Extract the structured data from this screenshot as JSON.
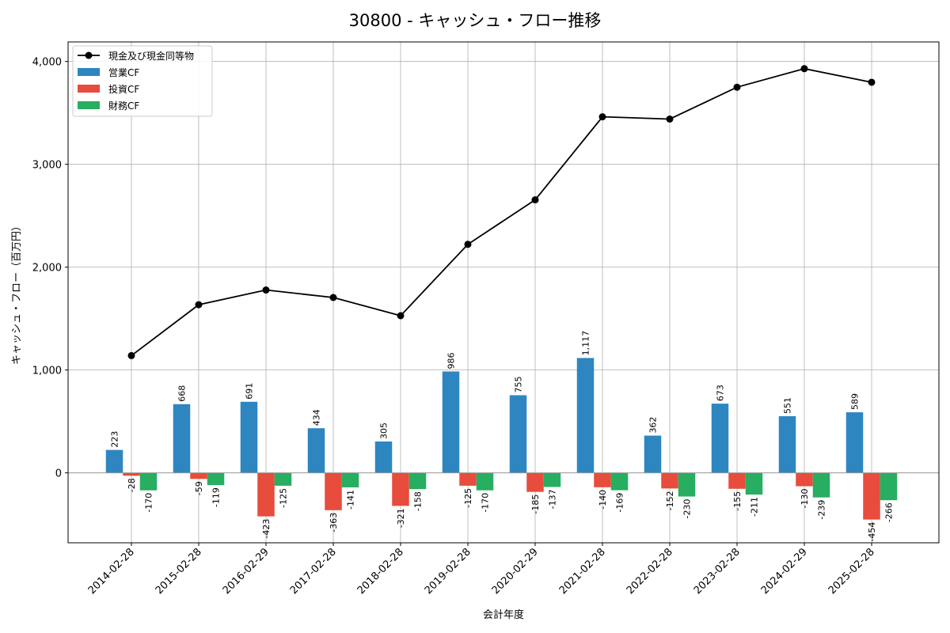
{
  "chart_data": {
    "type": "bar",
    "title": "30800 - キャッシュ・フロー推移",
    "xlabel": "会計年度",
    "ylabel": "キャッシュ・フロー（百万円）",
    "ylim": [
      -680,
      4190
    ],
    "yticks": [
      0,
      1000,
      2000,
      3000,
      4000
    ],
    "ytick_labels": [
      "0",
      "1,000",
      "2,000",
      "3,000",
      "4,000"
    ],
    "grid": true,
    "legend_position": "top-left",
    "categories": [
      "2014-02-28",
      "2015-02-28",
      "2016-02-29",
      "2017-02-28",
      "2018-02-28",
      "2019-02-28",
      "2020-02-29",
      "2021-02-28",
      "2022-02-28",
      "2023-02-28",
      "2024-02-29",
      "2025-02-28"
    ],
    "series": [
      {
        "name": "現金及び現金同等物",
        "kind": "line",
        "color": "#000000",
        "values": [
          1140,
          1635,
          1778,
          1705,
          1528,
          2222,
          2655,
          3462,
          3440,
          3750,
          3930,
          3798
        ]
      },
      {
        "name": "営業CF",
        "kind": "bar",
        "color": "#2e86c1",
        "values": [
          223,
          668,
          691,
          434,
          305,
          986,
          755,
          1117,
          362,
          673,
          551,
          589
        ],
        "labels": [
          "223",
          "668",
          "691",
          "434",
          "305",
          "986",
          "755",
          "1,117",
          "362",
          "673",
          "551",
          "589"
        ]
      },
      {
        "name": "投資CF",
        "kind": "bar",
        "color": "#e74c3c",
        "values": [
          -28,
          -59,
          -423,
          -363,
          -321,
          -125,
          -185,
          -140,
          -152,
          -155,
          -130,
          -454
        ],
        "labels": [
          "-28",
          "-59",
          "-423",
          "-363",
          "-321",
          "-125",
          "-185",
          "-140",
          "-152",
          "-155",
          "-130",
          "-454"
        ]
      },
      {
        "name": "財務CF",
        "kind": "bar",
        "color": "#27ae60",
        "values": [
          -170,
          -119,
          -125,
          -141,
          -158,
          -170,
          -137,
          -169,
          -230,
          -211,
          -239,
          -266
        ],
        "labels": [
          "-170",
          "-119",
          "-125",
          "-141",
          "-158",
          "-170",
          "-137",
          "-169",
          "-230",
          "-211",
          "-239",
          "-266"
        ]
      }
    ]
  }
}
